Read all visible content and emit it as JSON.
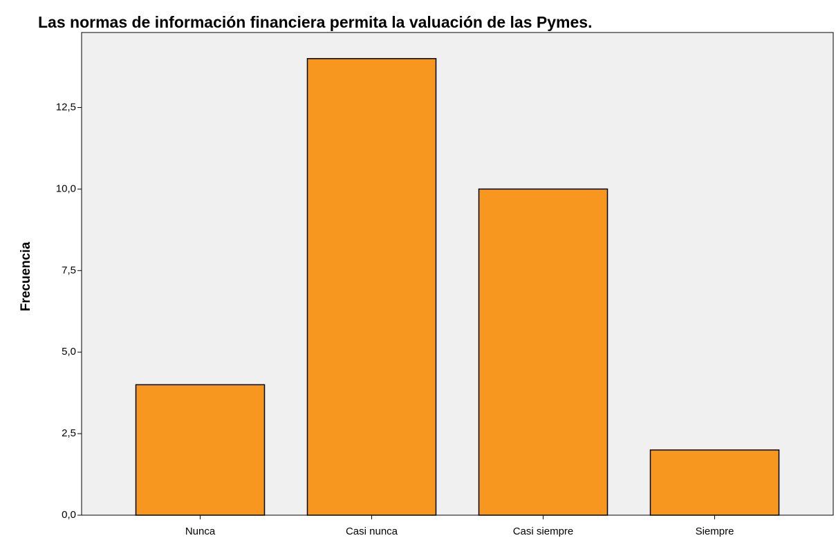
{
  "chart_data": {
    "type": "bar",
    "title": "Las normas de información financiera permita la valuación de las Pymes.",
    "y_label": "Frecuencia",
    "categories": [
      "Nunca",
      "Casi nunca",
      "Casi siempre",
      "Siempre"
    ],
    "values": [
      4,
      14,
      10,
      2
    ],
    "color": "#f7971f",
    "ylim": [
      0,
      14.8
    ],
    "yticks": [
      {
        "value": 0,
        "label": "0,0"
      },
      {
        "value": 2.5,
        "label": "2,5"
      },
      {
        "value": 5,
        "label": "5,0"
      },
      {
        "value": 7.5,
        "label": "7,5"
      },
      {
        "value": 10,
        "label": "10,0"
      },
      {
        "value": 12.5,
        "label": "12,5"
      }
    ],
    "grid": false
  }
}
